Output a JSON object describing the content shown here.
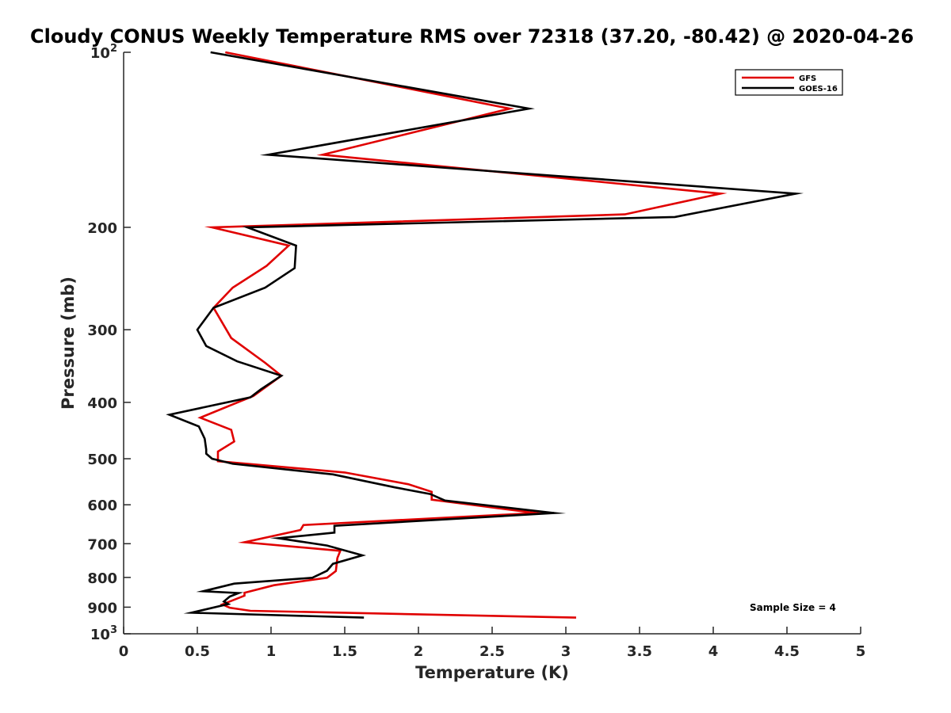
{
  "chart_data": {
    "type": "line",
    "title": "Cloudy CONUS Weekly Temperature RMS over 72318 (37.20, -80.42) @ 2020-04-26",
    "xlabel": "Temperature (K)",
    "ylabel": "Pressure (mb)",
    "xlim": [
      0,
      5
    ],
    "ylim": [
      100,
      1000
    ],
    "yscale": "log",
    "y_reversed": true,
    "grid": false,
    "legend_position": "top-right",
    "x_ticks": [
      {
        "value": 0,
        "label": "0"
      },
      {
        "value": 0.5,
        "label": "0.5"
      },
      {
        "value": 1,
        "label": "1"
      },
      {
        "value": 1.5,
        "label": "1.5"
      },
      {
        "value": 2,
        "label": "2"
      },
      {
        "value": 2.5,
        "label": "2.5"
      },
      {
        "value": 3,
        "label": "3"
      },
      {
        "value": 3.5,
        "label": "3.5"
      },
      {
        "value": 4,
        "label": "4"
      },
      {
        "value": 4.5,
        "label": "4.5"
      },
      {
        "value": 5,
        "label": "5"
      }
    ],
    "y_ticks": [
      {
        "value": 100,
        "base": "10",
        "exp": "2"
      },
      {
        "value": 200,
        "label": "200"
      },
      {
        "value": 300,
        "label": "300"
      },
      {
        "value": 400,
        "label": "400"
      },
      {
        "value": 500,
        "label": "500"
      },
      {
        "value": 600,
        "label": "600"
      },
      {
        "value": 700,
        "label": "700"
      },
      {
        "value": 800,
        "label": "800"
      },
      {
        "value": 900,
        "label": "900"
      },
      {
        "value": 1000,
        "base": "10",
        "exp": "3"
      }
    ],
    "series": [
      {
        "name": "GFS",
        "color": "#e00000",
        "points": [
          [
            0.69,
            100
          ],
          [
            2.62,
            125
          ],
          [
            1.35,
            150
          ],
          [
            4.05,
            175
          ],
          [
            3.4,
            190
          ],
          [
            0.6,
            200
          ],
          [
            1.12,
            215
          ],
          [
            0.97,
            233
          ],
          [
            0.74,
            254
          ],
          [
            0.61,
            275
          ],
          [
            0.73,
            310
          ],
          [
            0.96,
            342
          ],
          [
            1.07,
            360
          ],
          [
            0.88,
            390
          ],
          [
            0.52,
            425
          ],
          [
            0.73,
            446
          ],
          [
            0.75,
            467
          ],
          [
            0.64,
            486
          ],
          [
            0.64,
            505
          ],
          [
            1.5,
            528
          ],
          [
            1.93,
            553
          ],
          [
            2.09,
            570
          ],
          [
            2.09,
            588
          ],
          [
            2.8,
            620
          ],
          [
            1.22,
            650
          ],
          [
            1.2,
            663
          ],
          [
            0.82,
            696
          ],
          [
            1.47,
            720
          ],
          [
            1.45,
            741
          ],
          [
            1.44,
            780
          ],
          [
            1.38,
            801
          ],
          [
            1.02,
            825
          ],
          [
            0.82,
            850
          ],
          [
            0.82,
            860
          ],
          [
            0.67,
            890
          ],
          [
            0.72,
            902
          ],
          [
            0.86,
            913
          ],
          [
            3.07,
            938
          ]
        ]
      },
      {
        "name": "GOES-16",
        "color": "#000000",
        "points": [
          [
            0.59,
            100
          ],
          [
            2.75,
            125
          ],
          [
            0.98,
            150
          ],
          [
            4.56,
            175
          ],
          [
            3.74,
            192
          ],
          [
            0.84,
            200
          ],
          [
            1.17,
            215
          ],
          [
            1.16,
            235
          ],
          [
            0.96,
            254
          ],
          [
            0.61,
            275
          ],
          [
            0.5,
            300
          ],
          [
            0.56,
            320
          ],
          [
            0.77,
            340
          ],
          [
            1.07,
            360
          ],
          [
            0.93,
            380
          ],
          [
            0.86,
            392
          ],
          [
            0.31,
            420
          ],
          [
            0.51,
            440
          ],
          [
            0.55,
            462
          ],
          [
            0.56,
            482
          ],
          [
            0.56,
            490
          ],
          [
            0.6,
            500
          ],
          [
            0.74,
            510
          ],
          [
            1.42,
            532
          ],
          [
            1.84,
            560
          ],
          [
            2.08,
            575
          ],
          [
            2.18,
            590
          ],
          [
            2.92,
            620
          ],
          [
            1.43,
            652
          ],
          [
            1.43,
            670
          ],
          [
            1.05,
            685
          ],
          [
            1.38,
            705
          ],
          [
            1.62,
            733
          ],
          [
            1.42,
            758
          ],
          [
            1.38,
            779
          ],
          [
            1.28,
            801
          ],
          [
            0.75,
            820
          ],
          [
            0.54,
            845
          ],
          [
            0.78,
            851
          ],
          [
            0.72,
            863
          ],
          [
            0.68,
            880
          ],
          [
            0.71,
            889
          ],
          [
            0.46,
            920
          ],
          [
            1.63,
            938
          ]
        ]
      }
    ],
    "annotations": [
      "Sample Size = 4"
    ]
  }
}
